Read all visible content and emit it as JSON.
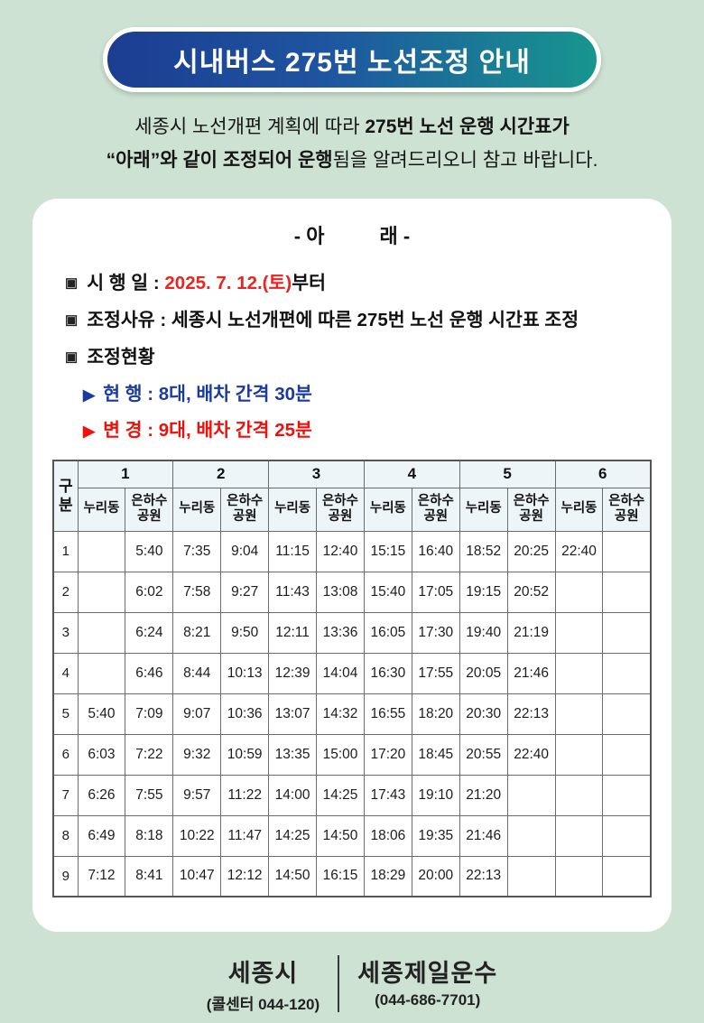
{
  "page": {
    "background": "#cde2d2"
  },
  "banner": {
    "title": "시내버스 275번 노선조정 안내",
    "gradient_start": "#1c3d92",
    "gradient_end": "#17968e"
  },
  "intro": {
    "line1_normal": "세종시 노선개편 계획에 따라",
    "line1_bold": "275번 노선 운행 시간표가",
    "line2_bold": "“아래”와 같이 조정되어 운행",
    "line2_normal": "됨을 알려드리오니 참고 바랍니다."
  },
  "notice": {
    "heading": "- 아          래 -",
    "items": [
      {
        "bullet": "▣",
        "label": "시 행 일 : ",
        "highlight": "2025. 7. 12.(토)",
        "suffix": "부터"
      },
      {
        "bullet": "▣",
        "text": "조정사유 : 세종시 노선개편에 따른 275번 노선 운행 시간표 조정"
      },
      {
        "bullet": "▣",
        "text": "조정현황"
      }
    ],
    "status": [
      {
        "marker": "▶",
        "text": "현 행 : 8대, 배차 간격 30분",
        "color": "#1a3a9c"
      },
      {
        "marker": "▶",
        "text": "변 경 : 9대, 배차 간격 25분",
        "color": "#ed100b"
      }
    ]
  },
  "table": {
    "corner": "구분",
    "groups": [
      "1",
      "2",
      "3",
      "4",
      "5",
      "6"
    ],
    "sub_headers": [
      "누리동",
      "은하수공원"
    ],
    "header_bg": "#eef5f9",
    "rows": [
      {
        "no": "1",
        "times": [
          "",
          "5:40",
          "7:35",
          "9:04",
          "11:15",
          "12:40",
          "15:15",
          "16:40",
          "18:52",
          "20:25",
          "22:40",
          ""
        ]
      },
      {
        "no": "2",
        "times": [
          "",
          "6:02",
          "7:58",
          "9:27",
          "11:43",
          "13:08",
          "15:40",
          "17:05",
          "19:15",
          "20:52",
          "",
          ""
        ]
      },
      {
        "no": "3",
        "times": [
          "",
          "6:24",
          "8:21",
          "9:50",
          "12:11",
          "13:36",
          "16:05",
          "17:30",
          "19:40",
          "21:19",
          "",
          ""
        ]
      },
      {
        "no": "4",
        "times": [
          "",
          "6:46",
          "8:44",
          "10:13",
          "12:39",
          "14:04",
          "16:30",
          "17:55",
          "20:05",
          "21:46",
          "",
          ""
        ]
      },
      {
        "no": "5",
        "times": [
          "5:40",
          "7:09",
          "9:07",
          "10:36",
          "13:07",
          "14:32",
          "16:55",
          "18:20",
          "20:30",
          "22:13",
          "",
          ""
        ]
      },
      {
        "no": "6",
        "times": [
          "6:03",
          "7:22",
          "9:32",
          "10:59",
          "13:35",
          "15:00",
          "17:20",
          "18:45",
          "20:55",
          "22:40",
          "",
          ""
        ]
      },
      {
        "no": "7",
        "times": [
          "6:26",
          "7:55",
          "9:57",
          "11:22",
          "14:00",
          "14:25",
          "17:43",
          "19:10",
          "21:20",
          "",
          "",
          ""
        ]
      },
      {
        "no": "8",
        "times": [
          "6:49",
          "8:18",
          "10:22",
          "11:47",
          "14:25",
          "14:50",
          "18:06",
          "19:35",
          "21:46",
          "",
          "",
          ""
        ]
      },
      {
        "no": "9",
        "times": [
          "7:12",
          "8:41",
          "10:47",
          "12:12",
          "14:50",
          "16:15",
          "18:29",
          "20:00",
          "22:13",
          "",
          "",
          ""
        ]
      }
    ]
  },
  "footer": {
    "left": {
      "name": "세종시",
      "phone": "(콜센터 044-120)"
    },
    "right": {
      "name": "세종제일운수",
      "phone": "(044-686-7701)"
    }
  }
}
